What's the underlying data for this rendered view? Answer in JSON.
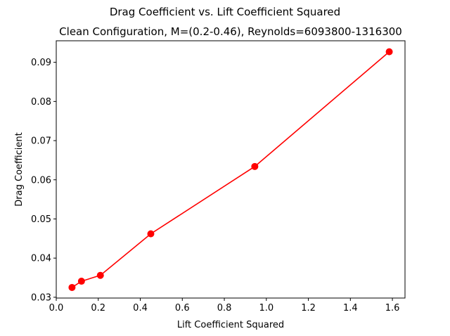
{
  "chart_data": {
    "type": "line",
    "suptitle": "Drag Coefficient vs. Lift Coefficient Squared",
    "title": "Clean Configuration, M=(0.2-0.46), Reynolds=6093800-1316300",
    "xlabel": "Lift Coefficient Squared",
    "ylabel": "Drag Coefficient",
    "xlim": [
      0.0,
      1.66
    ],
    "ylim": [
      0.0298,
      0.0955
    ],
    "xticks": [
      0.0,
      0.2,
      0.4,
      0.6,
      0.8,
      1.0,
      1.2,
      1.4,
      1.6
    ],
    "xtick_labels": [
      "0.0",
      "0.2",
      "0.4",
      "0.6",
      "0.8",
      "1.0",
      "1.2",
      "1.4",
      "1.6"
    ],
    "yticks": [
      0.03,
      0.04,
      0.05,
      0.06,
      0.07,
      0.08,
      0.09
    ],
    "ytick_labels": [
      "0.03",
      "0.04",
      "0.05",
      "0.06",
      "0.07",
      "0.08",
      "0.09"
    ],
    "grid": false,
    "series": [
      {
        "color": "#ff0000",
        "marker": "circle",
        "x": [
          0.075,
          0.12,
          0.21,
          0.45,
          0.945,
          1.585
        ],
        "y": [
          0.0325,
          0.0341,
          0.0356,
          0.0462,
          0.0634,
          0.0927
        ]
      }
    ]
  }
}
